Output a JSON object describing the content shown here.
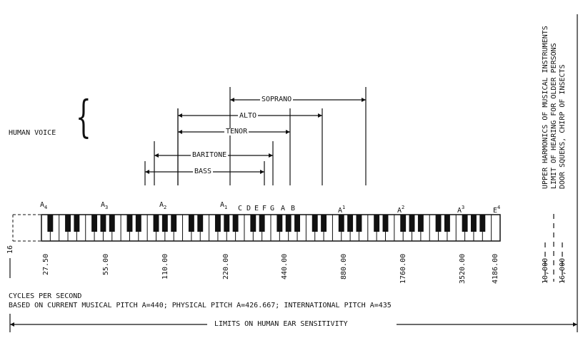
{
  "voice": {
    "label": "HUMAN VOICE",
    "ranges": [
      {
        "name": "SOPRANO"
      },
      {
        "name": "ALTO"
      },
      {
        "name": "TENOR"
      },
      {
        "name": "BARITONE"
      },
      {
        "name": "BASS"
      }
    ]
  },
  "keyboard": {
    "octave_labels": [
      {
        "letter": "A",
        "sub": "4",
        "sup": ""
      },
      {
        "letter": "A",
        "sub": "3",
        "sup": ""
      },
      {
        "letter": "A",
        "sub": "2",
        "sup": ""
      },
      {
        "letter": "A",
        "sub": "1",
        "sup": ""
      },
      {
        "letter": "A",
        "sub": "",
        "sup": "1"
      },
      {
        "letter": "A",
        "sub": "",
        "sup": "2"
      },
      {
        "letter": "A",
        "sub": "",
        "sup": "3"
      },
      {
        "letter": "E",
        "sub": "",
        "sup": "4"
      }
    ],
    "scale_notes": [
      "C",
      "D",
      "E",
      "F",
      "G",
      "A",
      "B"
    ],
    "side_label": "16"
  },
  "frequencies": [
    "27.50",
    "55.00",
    "110.00",
    "220.00",
    "440.00",
    "880.00",
    "1760.00",
    "3520.00",
    "4186.00"
  ],
  "right_limits": [
    {
      "value": "10,000",
      "label": "UPPER HARMONICS OF MUSICAL INSTRUMENTS"
    },
    {
      "value": "",
      "label": "LIMIT OF HEARING FOR OLDER PERSONS"
    },
    {
      "value": "16,000",
      "label": "DOOR SQUEKS, CHIRP OF INSECTS"
    }
  ],
  "footer": {
    "line1": "CYCLES PER SECOND",
    "line2": "BASED ON CURRENT MUSICAL PITCH A=440; PHYSICAL PITCH A=426.667; INTERNATIONAL PITCH A=435",
    "limits_label": "LIMITS ON HUMAN EAR SENSITIVITY"
  }
}
